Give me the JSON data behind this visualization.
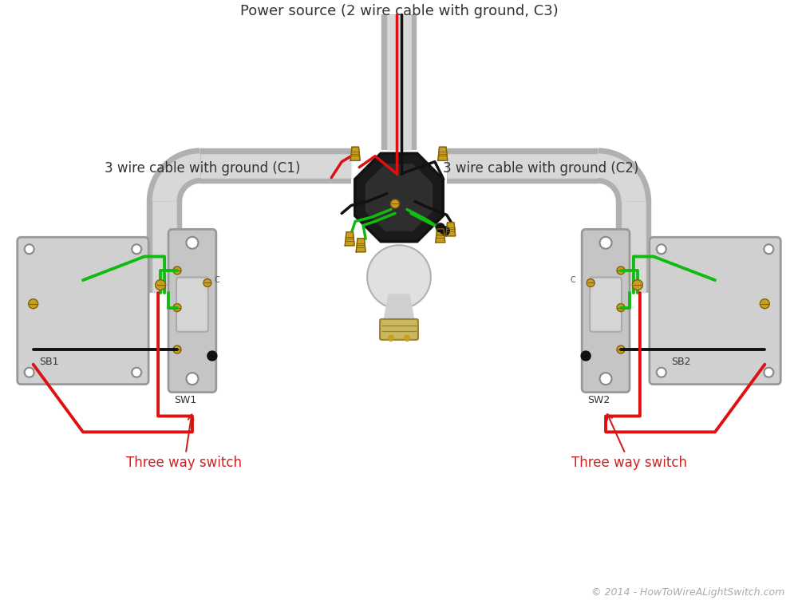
{
  "title": "Power source (2 wire cable with ground, C3)",
  "label_c1": "3 wire cable with ground (C1)",
  "label_c2": "3 wire cable with ground (C2)",
  "label_sw1": "Three way switch",
  "label_sw2": "Three way switch",
  "label_sb1": "SB1",
  "label_sb2": "SB2",
  "label_sw1b": "SW1",
  "label_sw2b": "SW2",
  "label_c": "C",
  "copyright": "© 2014 - HowToWireALightSwitch.com",
  "wire_red": "#dd1111",
  "wire_green": "#11bb11",
  "wire_black": "#111111",
  "wire_bare": "#dddddd",
  "screw_color": "#c8a020",
  "screw_dark": "#806010",
  "conduit_outer": "#b0b0b0",
  "conduit_inner": "#d8d8d8",
  "box_fill": "#d0d0d0",
  "box_edge": "#999999",
  "jbox_fill": "#1a1a1a",
  "jbox_edge": "#111111",
  "jbox_inner": "#2e2e2e",
  "bulb_body": "#e0e0e0",
  "bulb_base": "#c8b860",
  "font_title": 13,
  "font_label": 12,
  "font_small": 9,
  "font_copy": 9,
  "text_dark": "#333333",
  "text_red": "#cc2222",
  "text_copy": "#aaaaaa"
}
